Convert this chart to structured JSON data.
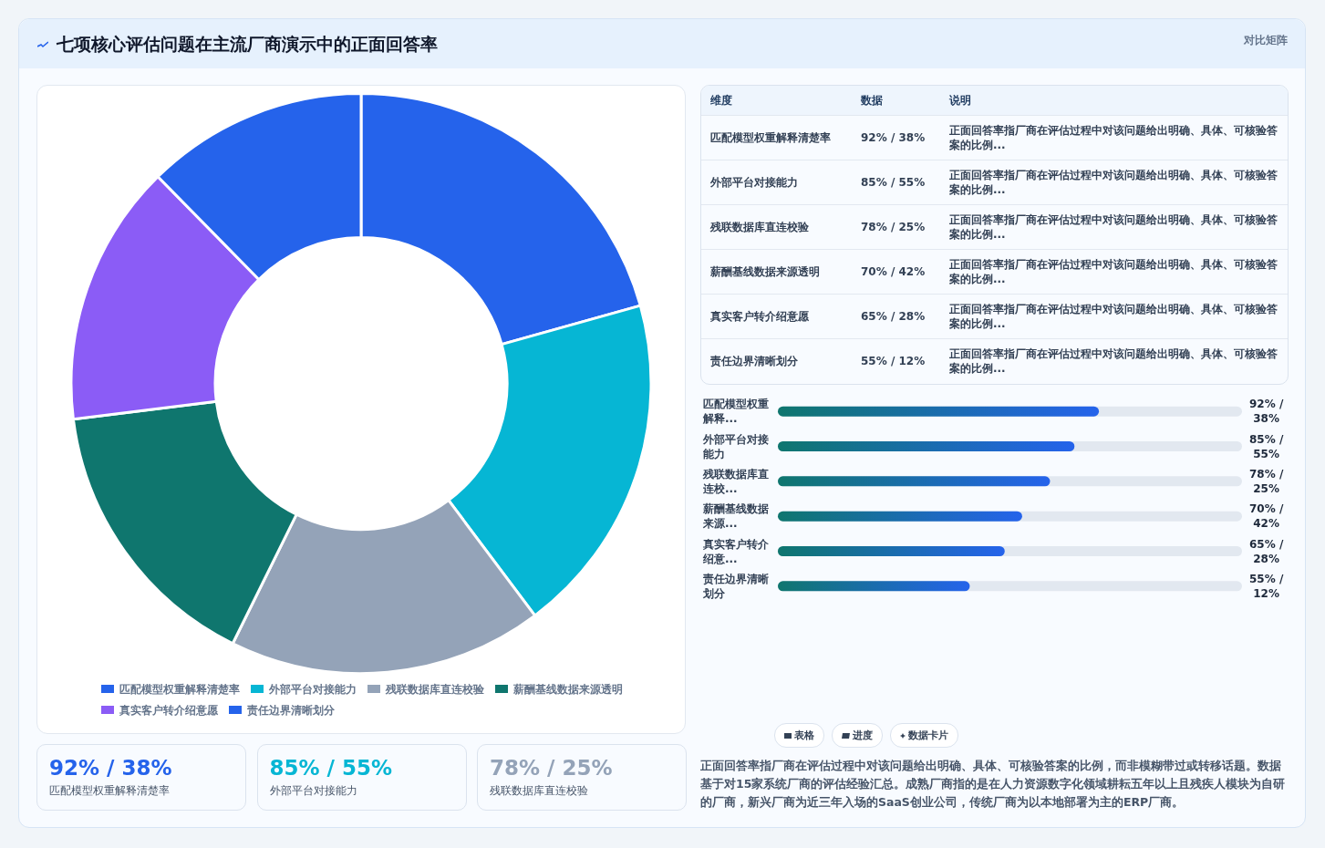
{
  "chart_data": [
    {
      "type": "donut",
      "title": "七项核心评估问题在主流厂商演示中的正面回答率",
      "annotations": [
        "对比矩阵"
      ],
      "categories": [
        "匹配模型权重解释清楚率",
        "外部平台对接能力",
        "残联数据库直连校验",
        "薪酬基线数据来源透明",
        "真实客户转介绍意愿",
        "责任边界清晰划分"
      ],
      "values": [
        20.67,
        19.1,
        17.53,
        15.73,
        14.61,
        12.36
      ],
      "colors": [
        "#2563eb",
        "#06b6d4",
        "#94a3b8",
        "#0f766e",
        "#8b5cf6",
        "#2563eb"
      ],
      "legend": "bottom"
    },
    {
      "type": "other",
      "categories": [
        "匹配模型权重解释清楚率",
        "外部平台对接能力",
        "残联数据库直连校验",
        "薪酬基线数据来源透明",
        "真实客户转介绍意愿",
        "责任边界清晰划分"
      ],
      "value_labels": [
        "92% / 38%",
        "85% / 55%",
        "78% / 25%",
        "70% / 42%",
        "65% / 28%",
        "55% / 12%"
      ],
      "annotations": [
        "维度",
        "数据",
        "说明",
        "正面回答率指厂商在评估过程中对该问题给出明确、具体、可核验答案的比例...",
        "正面回答率指厂商在评估过程中对该问题给出明确、具体、可核验答案的比例...",
        "正面回答率指厂商在评估过程中对该问题给出明确、具体、可核验答案的比例...",
        "正面回答率指厂商在评估过程中对该问题给出明确、具体、可核验答案的比例...",
        "正面回答率指厂商在评估过程中对该问题给出明确、具体、可核验答案的比例...",
        "正面回答率指厂商在评估过程中对该问题给出明确、具体、可核验答案的比例..."
      ]
    },
    {
      "type": "bar",
      "orientation": "horizontal",
      "xlim": [
        0,
        133
      ],
      "tick_labels": false,
      "categories": [
        "匹配模型权重解释...",
        "外部平台对接能力",
        "残联数据库直连校...",
        "薪酬基线数据来源...",
        "真实客户转介绍意...",
        "责任边界清晰划分"
      ],
      "series": [
        {
          "color": "#2563eb",
          "values": [
            92,
            85,
            78,
            70,
            65,
            55
          ],
          "value_labels": [
            "92% / 38%",
            "85% / 55%",
            "78% / 25%",
            "70% / 42%",
            "65% / 28%",
            "55% / 12%"
          ]
        }
      ]
    },
    {
      "type": "other",
      "categories": [
        "92% / 38%",
        "85% / 55%",
        "78% / 25%"
      ],
      "annotations": [
        "匹配模型权重解释清楚率",
        "外部平台对接能力",
        "残联数据库直连校验",
        "表格",
        "进度",
        "数据卡片",
        "正面回答率指厂商在评估过程中对该问题给出明确、具体、可核验答案的比例，而非模糊带过或转移话题。数据基于对15家系统厂商的评估经验汇总。成熟厂商指的是在人力资源数字化领域耕耘五年以上且残疾人模块为自研的厂商，新兴厂商为近三年入场的SaaS创业公司，传统厂商为以本地部署为主的ERP厂商。"
      ]
    }
  ]
}
